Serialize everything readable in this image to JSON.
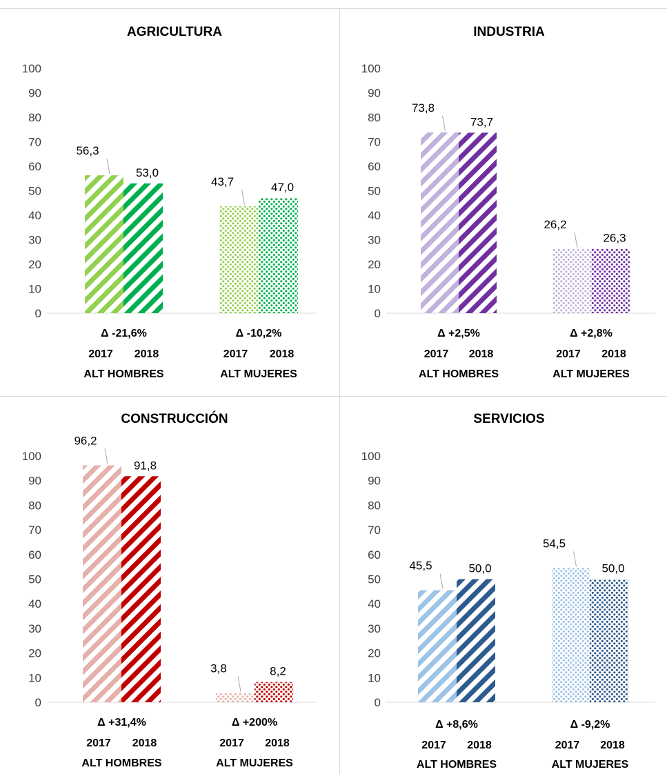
{
  "chart_data": [
    {
      "type": "bar",
      "title": "AGRICULTURA",
      "ylim": [
        0,
        100
      ],
      "yticks": [
        0,
        10,
        20,
        30,
        40,
        50,
        60,
        70,
        80,
        90,
        100
      ],
      "grid": false,
      "groups": [
        {
          "label": "ALT HOMBRES",
          "delta": "Δ -21,6%",
          "pattern": "stripes",
          "bars": [
            {
              "year": "2017",
              "value": 56.3,
              "label": "56,3"
            },
            {
              "year": "2018",
              "value": 53.0,
              "label": "53,0"
            }
          ]
        },
        {
          "label": "ALT MUJERES",
          "delta": "Δ -10,2%",
          "pattern": "dots",
          "bars": [
            {
              "year": "2017",
              "value": 43.7,
              "label": "43,7"
            },
            {
              "year": "2018",
              "value": 47.0,
              "label": "47,0"
            }
          ]
        }
      ],
      "colors": {
        "light": "#92d050",
        "dark": "#00b050"
      }
    },
    {
      "type": "bar",
      "title": "INDUSTRIA",
      "ylim": [
        0,
        100
      ],
      "yticks": [
        0,
        10,
        20,
        30,
        40,
        50,
        60,
        70,
        80,
        90,
        100
      ],
      "grid": false,
      "groups": [
        {
          "label": "ALT HOMBRES",
          "delta": "Δ +2,5%",
          "pattern": "stripes",
          "bars": [
            {
              "year": "2017",
              "value": 73.8,
              "label": "73,8"
            },
            {
              "year": "2018",
              "value": 73.7,
              "label": "73,7"
            }
          ]
        },
        {
          "label": "ALT MUJERES",
          "delta": "Δ +2,8%",
          "pattern": "dots",
          "bars": [
            {
              "year": "2017",
              "value": 26.2,
              "label": "26,2"
            },
            {
              "year": "2018",
              "value": 26.3,
              "label": "26,3"
            }
          ]
        }
      ],
      "colors": {
        "light": "#c0b2dc",
        "dark": "#7030a0"
      }
    },
    {
      "type": "bar",
      "title": "CONSTRUCCIÓN",
      "ylim": [
        0,
        100
      ],
      "yticks": [
        0,
        10,
        20,
        30,
        40,
        50,
        60,
        70,
        80,
        90,
        100
      ],
      "grid": false,
      "groups": [
        {
          "label": "ALT HOMBRES",
          "delta": "Δ +31,4%",
          "pattern": "stripes",
          "bars": [
            {
              "year": "2017",
              "value": 96.2,
              "label": "96,2"
            },
            {
              "year": "2018",
              "value": 91.8,
              "label": "91,8"
            }
          ]
        },
        {
          "label": "ALT MUJERES",
          "delta": "Δ +200%",
          "pattern": "dots",
          "bars": [
            {
              "year": "2017",
              "value": 3.8,
              "label": "3,8"
            },
            {
              "year": "2018",
              "value": 8.2,
              "label": "8,2"
            }
          ]
        }
      ],
      "colors": {
        "light": "#e6b0aa",
        "dark": "#c00000"
      }
    },
    {
      "type": "bar",
      "title": "SERVICIOS",
      "ylim": [
        0,
        100
      ],
      "yticks": [
        0,
        10,
        20,
        30,
        40,
        50,
        60,
        70,
        80,
        90,
        100
      ],
      "grid": false,
      "groups": [
        {
          "label": "ALT HOMBRES",
          "delta": "Δ +8,6%",
          "pattern": "stripes",
          "bars": [
            {
              "year": "2017",
              "value": 45.5,
              "label": "45,5"
            },
            {
              "year": "2018",
              "value": 50.0,
              "label": "50,0"
            }
          ]
        },
        {
          "label": "ALT MUJERES",
          "delta": "Δ -9,2%",
          "pattern": "dots",
          "bars": [
            {
              "year": "2017",
              "value": 54.5,
              "label": "54,5"
            },
            {
              "year": "2018",
              "value": 50.0,
              "label": "50,0"
            }
          ]
        }
      ],
      "colors": {
        "light": "#9dc3e6",
        "dark": "#2e5b8e"
      }
    }
  ]
}
